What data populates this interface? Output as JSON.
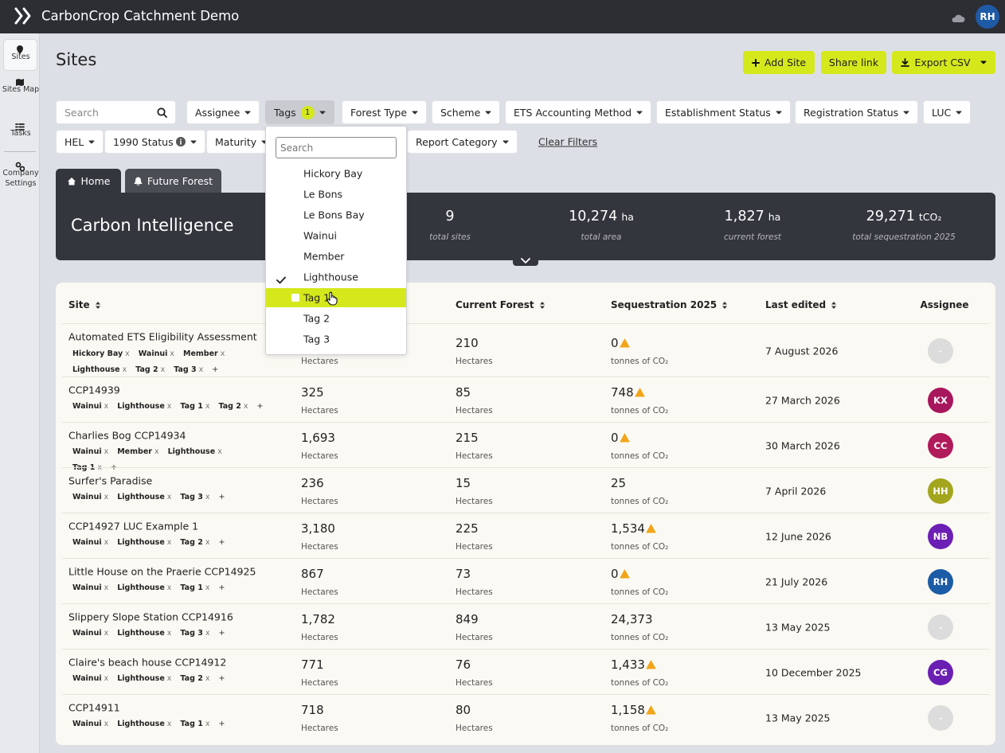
{
  "header": {
    "app_title": "CarbonCrop Catchment Demo",
    "user_initials": "RH"
  },
  "sidebar": {
    "items": [
      {
        "label": "Sites",
        "active": true
      },
      {
        "label": "Sites Map"
      },
      {
        "label": "Tasks"
      },
      {
        "label": "Company Settings"
      }
    ]
  },
  "page": {
    "title": "Sites",
    "actions": [
      "Add Site",
      "Share link",
      "Export CSV"
    ]
  },
  "filters": {
    "search_placeholder": "Search",
    "rows": [
      [
        {
          "label": "Assignee"
        },
        {
          "label": "Tags",
          "badge": "1",
          "active": true
        },
        {
          "label": "Forest Type"
        },
        {
          "label": "Scheme"
        },
        {
          "label": "ETS Accounting Method"
        },
        {
          "label": "Establishment Status"
        },
        {
          "label": "Registration Status"
        },
        {
          "label": "LUC"
        }
      ],
      [
        {
          "label": "HEL"
        },
        {
          "label": "1990 Status",
          "info": true
        },
        {
          "label": "Maturity"
        },
        {
          "label": "Report Category"
        }
      ]
    ],
    "clear_filters": "Clear Filters"
  },
  "dropdown": {
    "search_placeholder": "Search",
    "options": [
      {
        "label": "Hickory Bay"
      },
      {
        "label": "Le Bons"
      },
      {
        "label": "Le Bons Bay"
      },
      {
        "label": "Wainui"
      },
      {
        "label": "Member"
      },
      {
        "label": "Lighthouse",
        "checked": true
      },
      {
        "label": "Tag 1",
        "highlighted": true
      },
      {
        "label": "Tag 2"
      },
      {
        "label": "Tag 3"
      }
    ]
  },
  "tabs": [
    "Home",
    "Future Forest"
  ],
  "summary": {
    "title": "Carbon Intelligence",
    "stats": [
      {
        "value": "9",
        "label": "total sites"
      },
      {
        "value": "10,274",
        "unit": "ha",
        "label": "total area"
      },
      {
        "value": "1,827",
        "unit": "ha",
        "label": "current forest"
      },
      {
        "value": "29,271",
        "unit": "tCO₂",
        "label": "total sequestration 2025"
      }
    ]
  },
  "table": {
    "columns": [
      {
        "label": "Site",
        "sortable": true
      },
      {
        "label": "Current Forest",
        "sortable": true
      },
      {
        "label": "Sequestration 2025",
        "sortable": true
      },
      {
        "label": "Last edited",
        "sortable": true
      },
      {
        "label": "Assignee"
      }
    ],
    "area_unit": "Hectares",
    "seq_unit": "tonnes of CO₂",
    "tag_remove": "x",
    "tag_add": "+",
    "empty_assignee": "-",
    "rows": [
      {
        "site": "Automated ETS Eligibility Assessment",
        "tags": [
          "Hickory Bay",
          "Wainui",
          "Member",
          "Lighthouse",
          "Tag 2",
          "Tag 3"
        ],
        "area": null,
        "forest": "210",
        "seq": "0",
        "warning": true,
        "edited": "7 August 2026",
        "assignee": null
      },
      {
        "site": "CCP14939",
        "tags": [
          "Wainui",
          "Lighthouse",
          "Tag 1",
          "Tag 2"
        ],
        "area": "325",
        "forest": "85",
        "seq": "748",
        "warning": true,
        "edited": "27 March 2026",
        "assignee": {
          "initials": "KX",
          "color": "#a8165d"
        }
      },
      {
        "site": "Charlies Bog CCP14934",
        "tags": [
          "Wainui",
          "Member",
          "Lighthouse",
          "Tag 1"
        ],
        "area": "1,693",
        "forest": "215",
        "seq": "0",
        "warning": true,
        "edited": "30 March 2026",
        "assignee": {
          "initials": "CC",
          "color": "#b11a5b"
        }
      },
      {
        "site": "Surfer's Paradise",
        "tags": [
          "Wainui",
          "Lighthouse",
          "Tag 3"
        ],
        "area": "236",
        "forest": "15",
        "seq": "25",
        "warning": false,
        "edited": "7 April 2026",
        "assignee": {
          "initials": "HH",
          "color": "#a3a51c"
        }
      },
      {
        "site": "CCP14927 LUC Example 1",
        "tags": [
          "Wainui",
          "Lighthouse",
          "Tag 2"
        ],
        "area": "3,180",
        "forest": "225",
        "seq": "1,534",
        "warning": true,
        "edited": "12 June 2026",
        "assignee": {
          "initials": "NB",
          "color": "#6c1fb5"
        }
      },
      {
        "site": "Little House on the Praerie CCP14925",
        "tags": [
          "Wainui",
          "Lighthouse",
          "Tag 1"
        ],
        "area": "867",
        "forest": "73",
        "seq": "0",
        "warning": true,
        "edited": "21 July 2026",
        "assignee": {
          "initials": "RH",
          "color": "#1c5ba6"
        }
      },
      {
        "site": "Slippery Slope Station CCP14916",
        "tags": [
          "Wainui",
          "Lighthouse",
          "Tag 3"
        ],
        "area": "1,782",
        "forest": "849",
        "seq": "24,373",
        "warning": false,
        "edited": "13 May 2025",
        "assignee": null
      },
      {
        "site": "Claire's beach house CCP14912",
        "tags": [
          "Wainui",
          "Lighthouse",
          "Tag 2"
        ],
        "area": "771",
        "forest": "76",
        "seq": "1,433",
        "warning": true,
        "edited": "10 December 2025",
        "assignee": {
          "initials": "CG",
          "color": "#6a1fb2"
        }
      },
      {
        "site": "CCP14911",
        "tags": [
          "Wainui",
          "Lighthouse",
          "Tag 1"
        ],
        "area": "718",
        "forest": "80",
        "seq": "1,158",
        "warning": true,
        "edited": "13 May 2025",
        "assignee": null
      }
    ]
  }
}
